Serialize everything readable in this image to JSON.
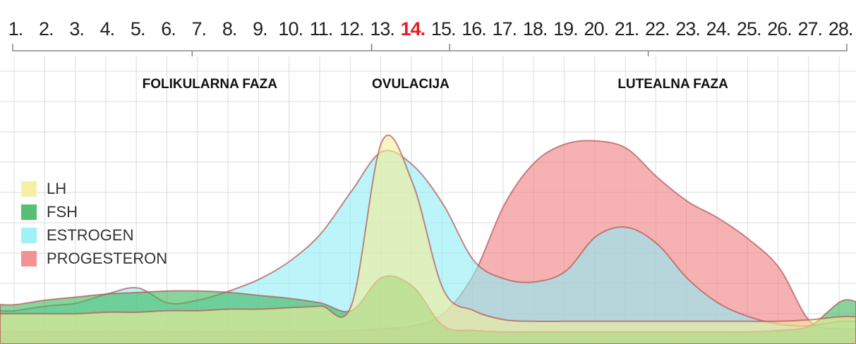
{
  "chart_data": {
    "type": "area",
    "categories": [
      "1.",
      "2.",
      "3.",
      "4.",
      "5.",
      "6.",
      "7.",
      "8.",
      "9.",
      "10.",
      "11.",
      "12.",
      "13.",
      "14.",
      "15.",
      "16.",
      "17.",
      "18.",
      "19.",
      "20.",
      "21.",
      "22.",
      "23.",
      "24.",
      "25.",
      "26.",
      "27.",
      "28."
    ],
    "highlight_category": "14.",
    "highlight_color": "#e41e26",
    "phases": [
      {
        "label": "FOLIKULARNA FAZA",
        "to": "13."
      },
      {
        "label": "OVULACIJA",
        "to": "15."
      },
      {
        "label": "LUTEALNA FAZA",
        "to": "28."
      }
    ],
    "series": [
      {
        "name": "LH",
        "color": "#f7ec98",
        "values": [
          1.0,
          1.0,
          1.0,
          1.05,
          1.05,
          1.1,
          1.1,
          1.15,
          1.15,
          1.2,
          1.25,
          1.3,
          6.7,
          5.3,
          1.8,
          1.1,
          0.8,
          0.75,
          0.75,
          0.75,
          0.75,
          0.75,
          0.75,
          0.75,
          0.75,
          0.75,
          0.8,
          0.9
        ]
      },
      {
        "name": "FSH",
        "color": "#3cb55a",
        "values": [
          1.3,
          1.45,
          1.55,
          1.65,
          1.7,
          1.75,
          1.75,
          1.7,
          1.6,
          1.5,
          1.35,
          1.1,
          2.2,
          1.9,
          0.6,
          0.45,
          0.4,
          0.4,
          0.4,
          0.4,
          0.4,
          0.4,
          0.4,
          0.4,
          0.4,
          0.45,
          0.6,
          1.4
        ]
      },
      {
        "name": "ESTROGEN",
        "color": "#8eeff5",
        "values": [
          1.1,
          1.25,
          1.35,
          1.65,
          1.85,
          1.35,
          1.45,
          1.75,
          2.15,
          2.75,
          3.65,
          5.05,
          6.35,
          5.9,
          4.6,
          2.75,
          2.15,
          2.05,
          2.4,
          3.55,
          3.85,
          3.3,
          2.15,
          1.35,
          0.9,
          0.65,
          0.6,
          0.75
        ]
      },
      {
        "name": "PROGESTERON",
        "color": "#f07f80",
        "values": [
          0.4,
          0.4,
          0.4,
          0.4,
          0.4,
          0.4,
          0.4,
          0.4,
          0.4,
          0.4,
          0.4,
          0.45,
          0.5,
          0.6,
          1.0,
          2.3,
          4.6,
          6.0,
          6.6,
          6.7,
          6.45,
          5.5,
          4.7,
          4.15,
          3.45,
          2.5,
          0.75,
          0.5
        ]
      }
    ]
  }
}
